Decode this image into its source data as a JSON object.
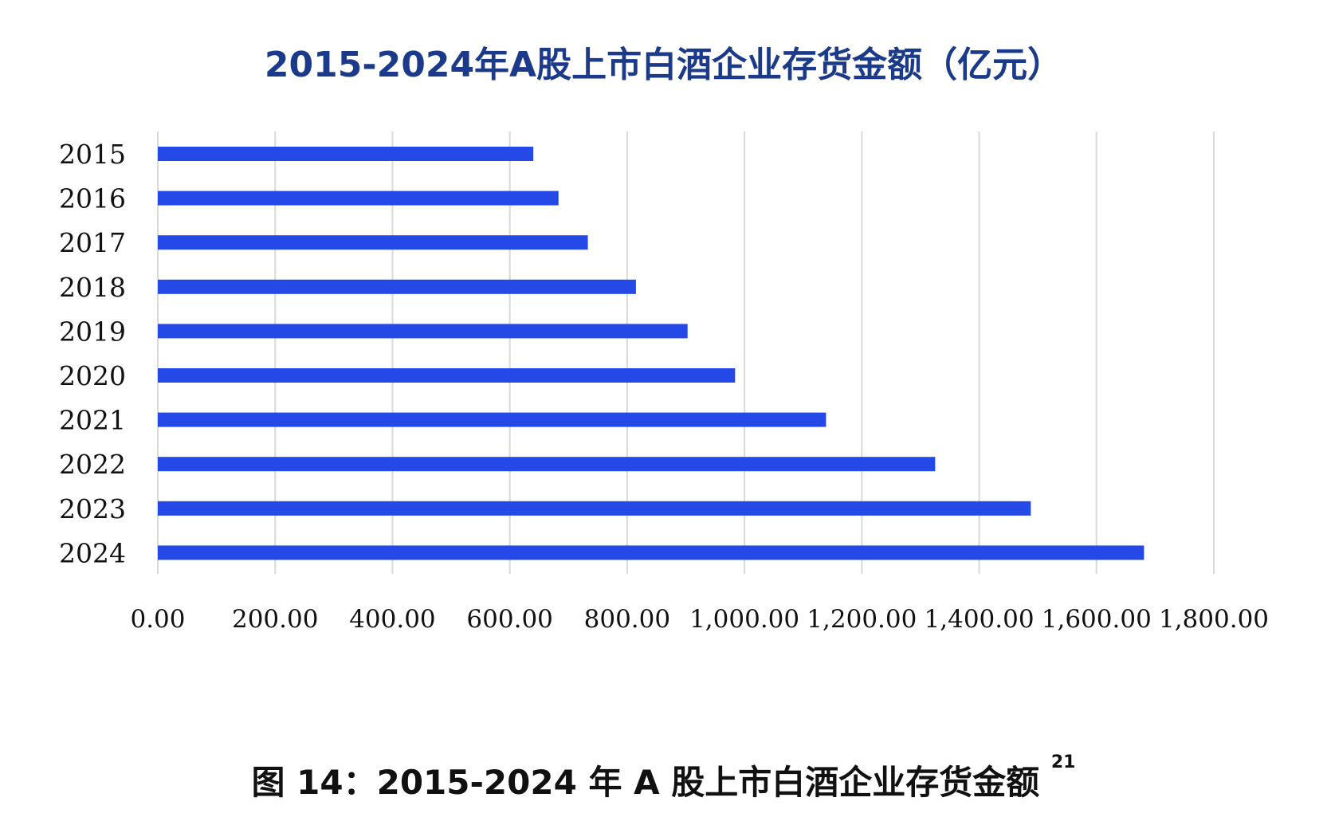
{
  "chart_data": {
    "type": "bar",
    "orientation": "horizontal",
    "title": "2015-2024年A股上市白酒企业存货金额（亿元）",
    "categories": [
      "2015",
      "2016",
      "2017",
      "2018",
      "2019",
      "2020",
      "2021",
      "2022",
      "2023",
      "2024"
    ],
    "values": [
      640,
      683,
      733,
      815,
      903,
      984,
      1139,
      1325,
      1488,
      1681
    ],
    "xlim": [
      0,
      1800
    ],
    "xticks": [
      "0.00",
      "200.00",
      "400.00",
      "600.00",
      "800.00",
      "1,000.00",
      "1,200.00",
      "1,400.00",
      "1,600.00",
      "1,800.00"
    ],
    "grid": "vertical",
    "legend": "none",
    "bar_color": "#2449e6",
    "grid_color": "#d9d9d9"
  },
  "caption": {
    "text": "图 14：2015-2024 年 A 股上市白酒企业存货金额",
    "footnote": "21"
  }
}
